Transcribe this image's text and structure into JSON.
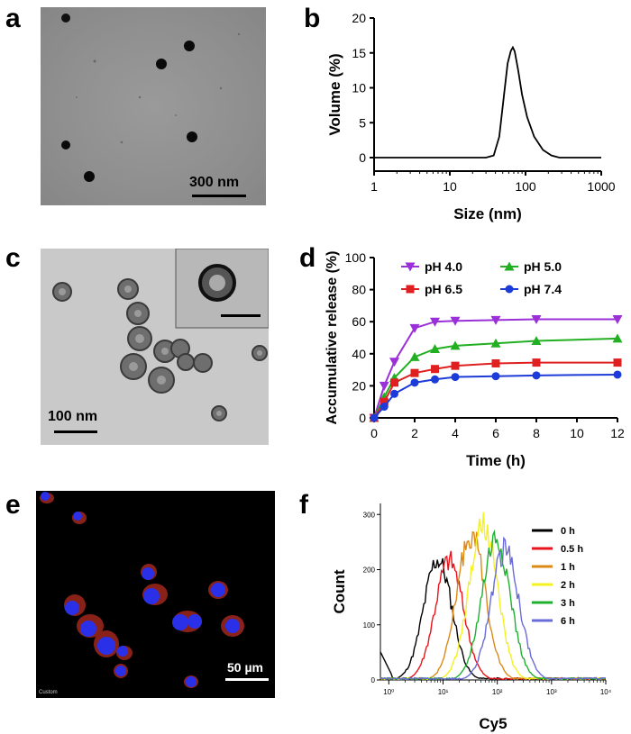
{
  "panels": {
    "a": {
      "label": "a",
      "scale_text": "300 nm"
    },
    "b": {
      "label": "b"
    },
    "c": {
      "label": "c",
      "scale_text": "100 nm"
    },
    "d": {
      "label": "d"
    },
    "e": {
      "label": "e",
      "scale_text": "50 µm",
      "corner_text": "Custom"
    },
    "f": {
      "label": "f"
    }
  },
  "chart_data": [
    {
      "panel": "b",
      "type": "line",
      "title": "",
      "xlabel": "Size (nm)",
      "ylabel": "Volume (%)",
      "xscale": "log",
      "xlim": [
        1,
        1000
      ],
      "ylim": [
        0,
        20
      ],
      "xticks": [
        1,
        10,
        100,
        1000
      ],
      "xtick_labels": [
        "1",
        "10",
        "100",
        "1000"
      ],
      "yticks": [
        0,
        5,
        10,
        15,
        20
      ],
      "ytick_labels": [
        "0",
        "5",
        "10",
        "15",
        "20"
      ],
      "series": [
        {
          "name": "size distribution",
          "x": [
            1,
            30,
            38,
            45,
            52,
            58,
            64,
            68,
            72,
            80,
            90,
            105,
            130,
            170,
            220,
            280,
            1000
          ],
          "y": [
            0,
            0,
            0.3,
            3,
            9,
            13.5,
            15.3,
            15.8,
            15.2,
            12.5,
            9,
            5.8,
            3,
            1.1,
            0.3,
            0,
            0
          ]
        }
      ]
    },
    {
      "panel": "d",
      "type": "line",
      "title": "",
      "xlabel": "Time (h)",
      "ylabel": "Accumulative release (%)",
      "xlim": [
        0,
        12
      ],
      "ylim": [
        0,
        100
      ],
      "xticks": [
        0,
        2,
        4,
        6,
        8,
        10,
        12
      ],
      "yticks": [
        0,
        20,
        40,
        60,
        80,
        100
      ],
      "legend": "top-left",
      "series": [
        {
          "name": "pH 4.0",
          "color": "#9b30d9",
          "marker": "triangle-down",
          "x": [
            0,
            0.5,
            1,
            2,
            3,
            4,
            6,
            8,
            12
          ],
          "y": [
            0,
            20,
            35,
            56,
            60,
            60.5,
            61,
            61.5,
            61.5
          ]
        },
        {
          "name": "pH 5.0",
          "color": "#22b022",
          "marker": "triangle-up",
          "x": [
            0,
            0.5,
            1,
            2,
            3,
            4,
            6,
            8,
            12
          ],
          "y": [
            0,
            13,
            25,
            38,
            43,
            45,
            46.5,
            48,
            49.5
          ]
        },
        {
          "name": "pH 6.5",
          "color": "#e02020",
          "marker": "square",
          "x": [
            0,
            0.5,
            1,
            2,
            3,
            4,
            6,
            8,
            12
          ],
          "y": [
            0,
            10,
            22,
            28,
            30.5,
            32.5,
            34,
            34.5,
            34.5
          ]
        },
        {
          "name": "pH 7.4",
          "color": "#1c3bd8",
          "marker": "circle",
          "x": [
            0,
            0.5,
            1,
            2,
            3,
            4,
            6,
            8,
            12
          ],
          "y": [
            0,
            7,
            15,
            22,
            24,
            25.5,
            26,
            26.5,
            27
          ]
        }
      ]
    },
    {
      "panel": "f",
      "type": "area",
      "title": "",
      "xlabel": "Cy5",
      "ylabel": "Count",
      "xscale": "log",
      "xlim": [
        0.7,
        10000
      ],
      "ylim": [
        0,
        320
      ],
      "yticks": [
        0,
        100,
        200,
        300
      ],
      "xtick_labels": [
        "10⁰",
        "10¹",
        "10²",
        "10³",
        "10⁴"
      ],
      "xtick_values": [
        1,
        10,
        100,
        1000,
        10000
      ],
      "legend": "top-right",
      "series": [
        {
          "name": "0 h",
          "color": "#000000",
          "peak": 8,
          "height": 218
        },
        {
          "name": "0.5 h",
          "color": "#e8131b",
          "peak": 13,
          "height": 217
        },
        {
          "name": "1 h",
          "color": "#dc8a16",
          "peak": 33,
          "height": 265
        },
        {
          "name": "2 h",
          "color": "#f4f120",
          "peak": 55,
          "height": 282
        },
        {
          "name": "3 h",
          "color": "#1fb030",
          "peak": 95,
          "height": 258
        },
        {
          "name": "6 h",
          "color": "#6a6cd8",
          "peak": 140,
          "height": 235
        }
      ]
    }
  ]
}
